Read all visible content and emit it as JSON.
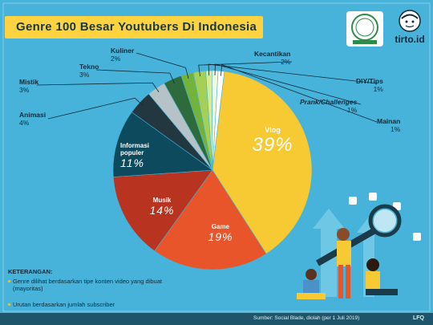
{
  "title": "Genre 100 Besar Youtubers Di Indonesia",
  "brand": {
    "name": "tirto.id",
    "badge_icon": "fact-checking-badge-icon",
    "logo_icon": "tirto-logo-icon"
  },
  "chart_data": {
    "type": "pie",
    "slices": [
      {
        "name": "Vlog",
        "value": 39,
        "label": "39%",
        "color": "#f7c932",
        "text_color": "#ffffff"
      },
      {
        "name": "Game",
        "value": 19,
        "label": "19%",
        "color": "#e8552a",
        "text_color": "#ffffff"
      },
      {
        "name": "Musik",
        "value": 14,
        "label": "14%",
        "color": "#b83420",
        "text_color": "#ffffff"
      },
      {
        "name": "Informasi populer",
        "value": 11,
        "label": "11%",
        "color": "#0d4a5e",
        "text_color": "#ffffff"
      },
      {
        "name": "Animasi",
        "value": 4,
        "label": "4%",
        "color": "#233741",
        "text_color": "#ffffff"
      },
      {
        "name": "Mistik",
        "value": 3,
        "label": "3%",
        "color": "#b5c2c8",
        "text_color": "#ffffff"
      },
      {
        "name": "Tekno",
        "value": 3,
        "label": "3%",
        "color": "#2e6b3c",
        "text_color": "#ffffff"
      },
      {
        "name": "Kuliner",
        "value": 2,
        "label": "2%",
        "color": "#74b23e",
        "text_color": "#ffffff"
      },
      {
        "name": "Kecantikan",
        "value": 2,
        "label": "2%",
        "color": "#a4d057",
        "text_color": "#ffffff"
      },
      {
        "name": "DIY/Tips",
        "value": 1,
        "label": "1%",
        "color": "#d9ec8d",
        "text_color": "#ffffff"
      },
      {
        "name": "Prank/Challenges",
        "value": 1,
        "label": "1%",
        "color": "#f4f9dc",
        "text_color": "#ffffff"
      },
      {
        "name": "Mainan",
        "value": 1,
        "label": "1%",
        "color": "#ffffff",
        "text_color": "#ffffff"
      }
    ]
  },
  "labels": {
    "vlog": {
      "name": "Vlog",
      "value": "39%"
    },
    "game": {
      "name": "Game",
      "value": "19%"
    },
    "musik": {
      "name": "Musik",
      "value": "14%"
    },
    "info": {
      "name1": "Informasi",
      "name2": "populer",
      "value": "11%"
    },
    "animasi": {
      "name": "Animasi",
      "value": "4%"
    },
    "mistik": {
      "name": "Mistik",
      "value": "3%"
    },
    "tekno": {
      "name": "Tekno",
      "value": "3%"
    },
    "kuliner": {
      "name": "Kuliner",
      "value": "2%"
    },
    "kecantikan": {
      "name": "Kecantikan",
      "value": "2%"
    },
    "diy": {
      "name": "DIY/Tips",
      "value": "1%"
    },
    "prank": {
      "name": "Prank/Challenges",
      "value": "1%"
    },
    "mainan": {
      "name": "Mainan",
      "value": "1%"
    }
  },
  "keterangan": {
    "title": "KETERANGAN:",
    "item1_line1": "Genre dilihat berdasarkan tipe konten video yang dibuat",
    "item1_line2": "(mayoritas)",
    "item2": "Urutan berdasarkan jumlah subscriber"
  },
  "footer": {
    "source": "Sumber:    Social Blade, diolah (per 1 Juli 2019)",
    "credit": "LFQ"
  },
  "colors": {
    "background": "#47b3da",
    "title_box": "#ffd23f",
    "footer": "#1f556b",
    "dark_text": "#0f2a38"
  }
}
